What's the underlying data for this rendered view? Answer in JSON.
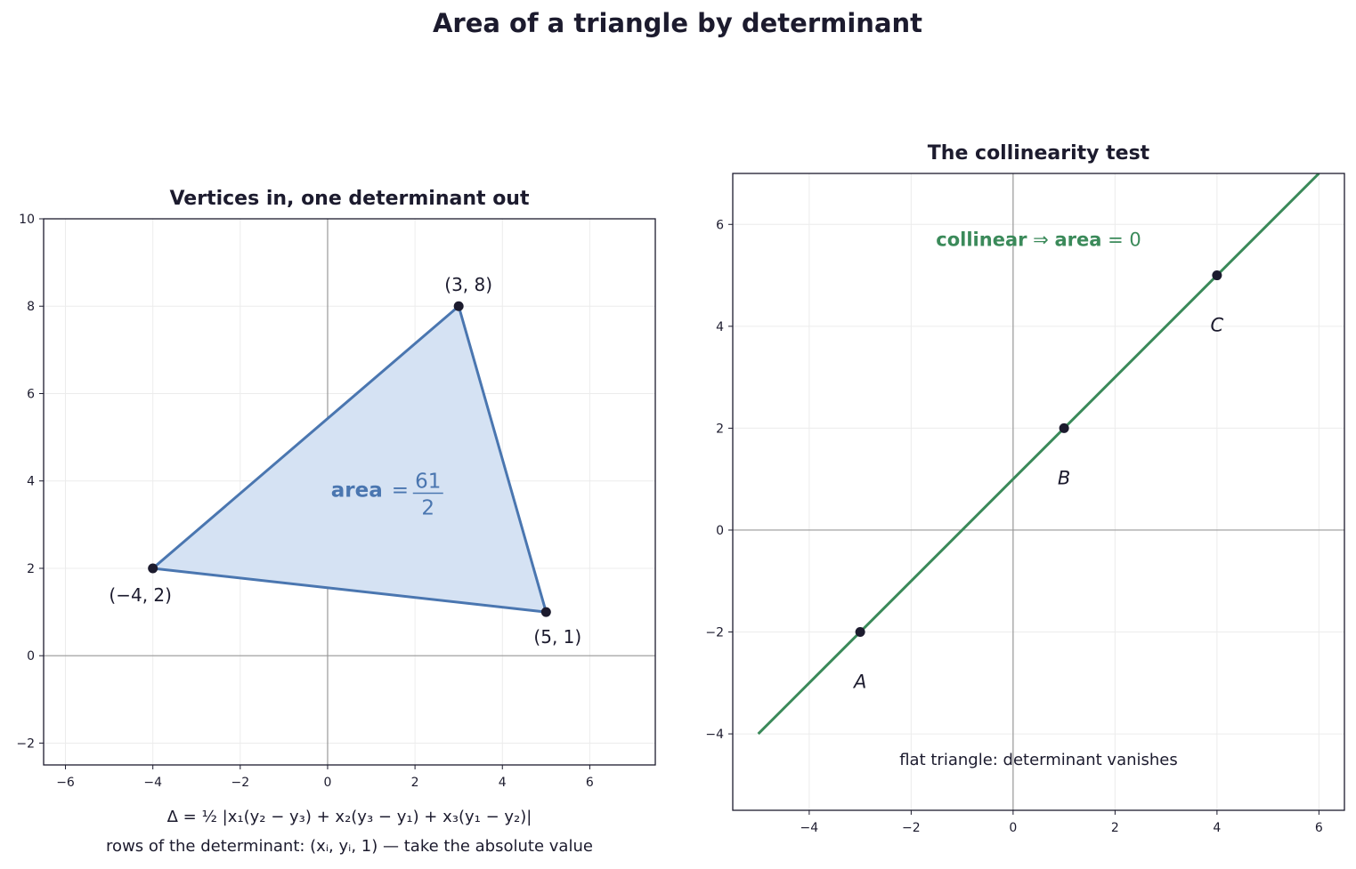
{
  "suptitle": "Area of a triangle by determinant",
  "formula_line1": "Δ = ½ |x₁(y₂ − y₃) + x₂(y₃ − y₁) + x₃(y₁ − y₂)|",
  "formula_line2": "rows of the determinant: (xᵢ, yᵢ, 1) — take the absolute value",
  "chart_data": [
    {
      "type": "scatter",
      "title": "Vertices in, one determinant out",
      "xlim": [
        -6.5,
        7.5
      ],
      "ylim": [
        -2.5,
        10
      ],
      "xticks": [
        -6,
        -4,
        -2,
        0,
        2,
        4,
        6
      ],
      "yticks": [
        -2,
        0,
        2,
        4,
        6,
        8,
        10
      ],
      "grid": true,
      "vertices": [
        {
          "x": 3,
          "y": 8,
          "label": "(3, 8)"
        },
        {
          "x": -4,
          "y": 2,
          "label": "(−4, 2)"
        },
        {
          "x": 5,
          "y": 1,
          "label": "(5, 1)"
        }
      ],
      "polygon_fill": "#d5e2f3",
      "polygon_edge": "#4a76b0",
      "annotation": {
        "bold": "area",
        "rest": "=",
        "num": "61",
        "den": "2",
        "x": 1.3,
        "y": 3.8
      }
    },
    {
      "type": "scatter",
      "title": "The collinearity test",
      "xlim": [
        -5.5,
        6.5
      ],
      "ylim": [
        -5.5,
        7
      ],
      "xticks": [
        -4,
        -2,
        0,
        2,
        4,
        6
      ],
      "yticks": [
        -4,
        -2,
        0,
        2,
        4,
        6
      ],
      "grid": true,
      "line": {
        "x": [
          -5,
          6
        ],
        "y": [
          -4,
          7
        ],
        "color": "#3b8a5a"
      },
      "points": [
        {
          "x": -3,
          "y": -2,
          "label": "A"
        },
        {
          "x": 1,
          "y": 2,
          "label": "B"
        },
        {
          "x": 4,
          "y": 5,
          "label": "C"
        }
      ],
      "annotation": {
        "bold1": "collinear",
        "arrow": "⇒",
        "bold2": "area",
        "rest": "= 0",
        "x": 0.5,
        "y": 5.7
      },
      "note": "flat triangle: determinant vanishes"
    }
  ]
}
